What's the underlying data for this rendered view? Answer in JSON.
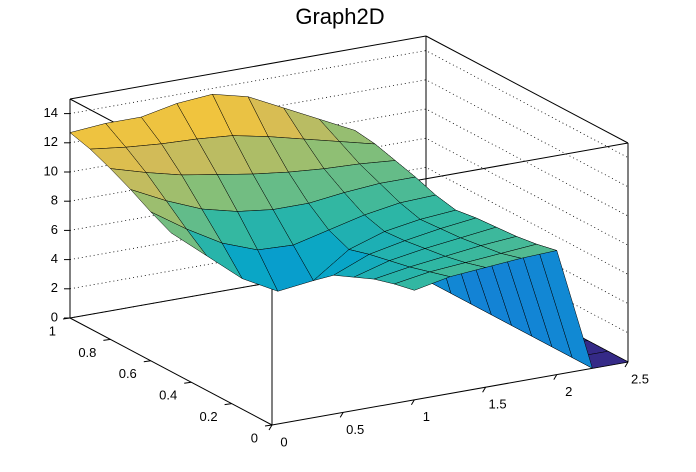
{
  "chart_data": {
    "type": "surface",
    "title": "Graph2D",
    "x": [
      0,
      0.25,
      0.5,
      0.75,
      1,
      1.25,
      1.5,
      1.75,
      2,
      2.25,
      2.5
    ],
    "y": [
      0,
      0.1,
      0.2,
      0.3,
      0.4,
      0.5,
      0.6,
      0.7,
      0.8,
      0.9,
      1
    ],
    "z": [
      [
        null,
        null,
        null,
        null,
        7.5,
        8,
        8.2,
        8.4,
        8.5,
        0,
        0
      ],
      [
        null,
        null,
        null,
        null,
        7.2,
        7.6,
        7.8,
        8,
        8.2,
        0,
        0
      ],
      [
        null,
        null,
        null,
        null,
        6.8,
        7.2,
        7.5,
        7.8,
        8,
        0,
        0
      ],
      [
        null,
        null,
        null,
        null,
        6.2,
        6.9,
        7.3,
        7.6,
        7.9,
        0,
        0
      ],
      [
        null,
        null,
        null,
        null,
        5.6,
        6.6,
        7.1,
        7.5,
        7.8,
        0,
        0
      ],
      [
        9.5,
        7.5,
        5.5,
        4.2,
        4.5,
        6.2,
        7,
        7.4,
        7.6,
        0,
        0
      ],
      [
        10.2,
        8.6,
        7.2,
        6.3,
        6.2,
        6.8,
        7.4,
        7.8,
        7.9,
        0,
        0
      ],
      [
        11,
        9.8,
        8.8,
        8.2,
        7.9,
        7.9,
        8.2,
        8.4,
        8.4,
        0,
        0
      ],
      [
        11.7,
        11,
        10.4,
        10,
        9.6,
        9.3,
        9.1,
        9,
        8.8,
        0,
        0
      ],
      [
        12.3,
        12,
        11.8,
        11.7,
        11.5,
        11,
        10.4,
        9.8,
        9.2,
        0,
        0
      ],
      [
        12.7,
        12.9,
        12.9,
        13.4,
        13.6,
        13,
        11.8,
        10.6,
        9.4,
        0,
        0
      ]
    ],
    "xlim": [
      0,
      2.5
    ],
    "ylim": [
      0,
      1
    ],
    "zlim": [
      0,
      15
    ],
    "xticks": [
      0,
      0.5,
      1,
      1.5,
      2,
      2.5
    ],
    "yticks": [
      0,
      0.2,
      0.4,
      0.6,
      0.8,
      1
    ],
    "zticks": [
      0,
      2,
      4,
      6,
      8,
      10,
      12,
      14
    ],
    "grid": true,
    "colormap": [
      "#352a87",
      "#0f5cdd",
      "#1481d6",
      "#06a4ca",
      "#2eb7a4",
      "#87bf77",
      "#d1bb59",
      "#fec832",
      "#f9fb0e"
    ]
  }
}
